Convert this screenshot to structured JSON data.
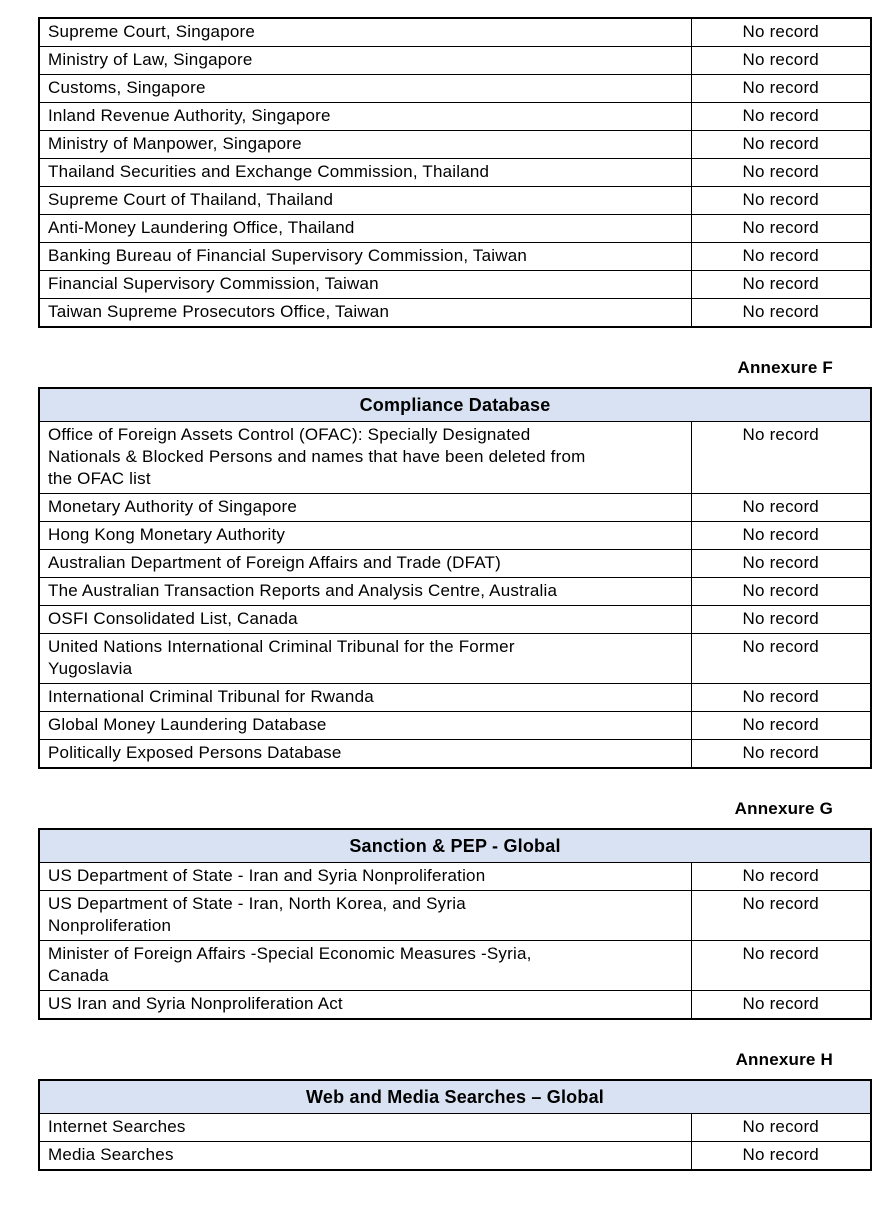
{
  "colors": {
    "page_background": "#ffffff",
    "table_header_background": "#d9e2f3",
    "border": "#000000",
    "text": "#000000"
  },
  "sections": [
    {
      "annexure_label": "",
      "header": "",
      "rows": [
        {
          "source": "Supreme Court, Singapore",
          "result": "No record"
        },
        {
          "source": "Ministry of Law, Singapore",
          "result": "No record"
        },
        {
          "source": "Customs, Singapore",
          "result": "No record"
        },
        {
          "source": "Inland Revenue Authority, Singapore",
          "result": "No record"
        },
        {
          "source": "Ministry of Manpower, Singapore",
          "result": "No record"
        },
        {
          "source": "Thailand Securities and Exchange Commission, Thailand",
          "result": "No record"
        },
        {
          "source": "Supreme Court of Thailand, Thailand",
          "result": "No record"
        },
        {
          "source": "Anti-Money Laundering Office, Thailand",
          "result": "No record"
        },
        {
          "source": "Banking Bureau of Financial Supervisory Commission, Taiwan",
          "result": "No record"
        },
        {
          "source": "Financial Supervisory Commission, Taiwan",
          "result": "No record"
        },
        {
          "source": "Taiwan Supreme Prosecutors Office, Taiwan",
          "result": "No record"
        }
      ]
    },
    {
      "annexure_label": "Annexure F",
      "header": "Compliance Database",
      "rows": [
        {
          "source": "Office of Foreign Assets Control (OFAC): Specially Designated\nNationals & Blocked Persons and names that have been deleted from\nthe OFAC list",
          "result": "No record"
        },
        {
          "source": "Monetary Authority of Singapore",
          "result": "No record"
        },
        {
          "source": "Hong Kong Monetary Authority",
          "result": "No record"
        },
        {
          "source": "Australian Department of Foreign Affairs and Trade (DFAT)",
          "result": "No record"
        },
        {
          "source": "The Australian Transaction Reports and Analysis Centre, Australia",
          "result": "No record"
        },
        {
          "source": "OSFI Consolidated List, Canada",
          "result": "No record"
        },
        {
          "source": "United Nations International Criminal Tribunal for the Former\nYugoslavia",
          "result": "No record"
        },
        {
          "source": "International Criminal Tribunal for Rwanda",
          "result": "No record"
        },
        {
          "source": "Global Money Laundering Database",
          "result": "No record"
        },
        {
          "source": "Politically Exposed Persons Database",
          "result": "No record"
        }
      ]
    },
    {
      "annexure_label": "Annexure G",
      "header": "Sanction & PEP - Global",
      "rows": [
        {
          "source": "US Department of State - Iran and Syria Nonproliferation",
          "result": "No record"
        },
        {
          "source": "US Department of State - Iran, North Korea, and Syria\nNonproliferation",
          "result": "No record"
        },
        {
          "source": "Minister of Foreign Affairs -Special Economic Measures -Syria,\nCanada",
          "result": "No record"
        },
        {
          "source": "US Iran and Syria Nonproliferation Act",
          "result": "No record"
        }
      ]
    },
    {
      "annexure_label": "Annexure H",
      "header": "Web and Media Searches – Global",
      "rows": [
        {
          "source": "Internet Searches",
          "result": "No record"
        },
        {
          "source": "Media Searches",
          "result": "No record"
        }
      ]
    }
  ]
}
